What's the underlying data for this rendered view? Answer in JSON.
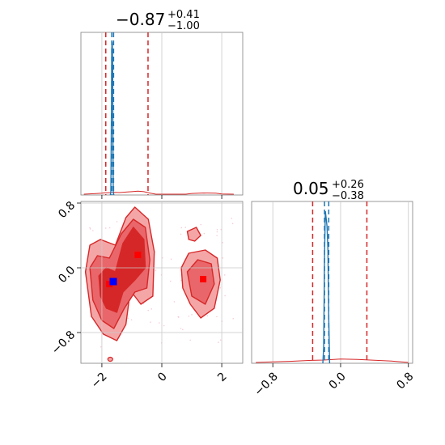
{
  "chart_data": {
    "type": "corner",
    "parameters": [
      {
        "title_value": "−0.87",
        "title_plus": "+0.41",
        "title_minus": "−1.00",
        "range": [
          -2.7,
          2.7
        ],
        "ticks": [
          -2,
          0,
          2
        ],
        "tick_labels": [
          "−2",
          "0",
          "2"
        ],
        "red_quantiles": [
          -1.87,
          -0.46
        ],
        "blue_quantiles": [
          -1.67,
          -1.61
        ],
        "red_hist": [
          [
            -2.6,
            0.0
          ],
          [
            -2.2,
            0.004
          ],
          [
            -2.0,
            0.007
          ],
          [
            -1.9,
            0.01
          ],
          [
            -1.8,
            0.01
          ],
          [
            -1.6,
            0.013
          ],
          [
            -1.4,
            0.012
          ],
          [
            -1.2,
            0.015
          ],
          [
            -1.0,
            0.018
          ],
          [
            -0.8,
            0.022
          ],
          [
            -0.6,
            0.018
          ],
          [
            -0.4,
            0.008
          ],
          [
            -0.2,
            0.0
          ],
          [
            0.8,
            0.0
          ],
          [
            1.0,
            0.005
          ],
          [
            1.4,
            0.009
          ],
          [
            1.8,
            0.007
          ],
          [
            2.0,
            0.002
          ],
          [
            2.4,
            0.0
          ]
        ],
        "blue_hist": [
          [
            -1.72,
            0.0
          ],
          [
            -1.7,
            0.02
          ],
          [
            -1.68,
            0.6
          ],
          [
            -1.67,
            0.95
          ],
          [
            -1.66,
            1.0
          ],
          [
            -1.65,
            0.97
          ],
          [
            -1.64,
            0.8
          ],
          [
            -1.63,
            0.3
          ],
          [
            -1.62,
            0.02
          ],
          [
            -1.6,
            0.0
          ]
        ]
      },
      {
        "title_value": "0.05",
        "title_plus": "+0.26",
        "title_minus": "−0.38",
        "range": [
          -1.05,
          0.85
        ],
        "ticks": [
          -0.8,
          0.0,
          0.8
        ],
        "tick_labels": [
          "−0.8",
          "0.0",
          "0.8"
        ],
        "red_quantiles": [
          -0.33,
          0.31
        ],
        "blue_quantiles": [
          -0.19,
          -0.14
        ],
        "red_hist": [
          [
            -1.0,
            0.0
          ],
          [
            -0.8,
            0.004
          ],
          [
            -0.6,
            0.008
          ],
          [
            -0.4,
            0.014
          ],
          [
            -0.2,
            0.018
          ],
          [
            0.0,
            0.025
          ],
          [
            0.2,
            0.022
          ],
          [
            0.4,
            0.016
          ],
          [
            0.6,
            0.01
          ],
          [
            0.8,
            0.0
          ]
        ],
        "blue_hist": [
          [
            -0.21,
            0.0
          ],
          [
            -0.2,
            0.1
          ],
          [
            -0.19,
            0.7
          ],
          [
            -0.18,
            1.0
          ],
          [
            -0.17,
            0.95
          ],
          [
            -0.16,
            0.9
          ],
          [
            -0.15,
            0.75
          ],
          [
            -0.14,
            0.3
          ],
          [
            -0.13,
            0.0
          ]
        ]
      }
    ],
    "joint": {
      "x_range": [
        -2.7,
        2.7
      ],
      "y_range": [
        -1.18,
        0.82
      ],
      "x_ticks": [
        -2,
        0,
        2
      ],
      "x_tick_labels": [
        "−2",
        "0",
        "2"
      ],
      "y_ticks": [
        0.8,
        0.0,
        -0.8
      ],
      "y_tick_labels": [
        "0.8",
        "0.0",
        "−0.8"
      ],
      "red_modes": [
        [
          -1.75,
          -0.2
        ],
        [
          -0.8,
          0.16
        ],
        [
          1.38,
          -0.14
        ]
      ],
      "blue_points": [
        [
          -1.62,
          -0.17
        ]
      ],
      "contour_regions": [
        {
          "level": "outer",
          "polygon": [
            [
              -2.55,
              -0.05
            ],
            [
              -2.4,
              0.28
            ],
            [
              -2.05,
              0.35
            ],
            [
              -1.55,
              0.28
            ],
            [
              -1.2,
              0.62
            ],
            [
              -0.9,
              0.75
            ],
            [
              -0.45,
              0.6
            ],
            [
              -0.25,
              0.2
            ],
            [
              -0.3,
              -0.35
            ],
            [
              -0.7,
              -0.45
            ],
            [
              -1.05,
              -0.28
            ],
            [
              -1.2,
              -0.7
            ],
            [
              -1.5,
              -0.9
            ],
            [
              -1.95,
              -0.82
            ],
            [
              -2.35,
              -0.6
            ]
          ]
        },
        {
          "level": "inner",
          "polygon": [
            [
              -2.4,
              0.0
            ],
            [
              -2.15,
              0.15
            ],
            [
              -1.75,
              0.12
            ],
            [
              -1.35,
              0.42
            ],
            [
              -0.95,
              0.6
            ],
            [
              -0.55,
              0.5
            ],
            [
              -0.4,
              0.1
            ],
            [
              -0.5,
              -0.25
            ],
            [
              -0.9,
              -0.3
            ],
            [
              -1.25,
              -0.5
            ],
            [
              -1.6,
              -0.75
            ],
            [
              -2.0,
              -0.65
            ],
            [
              -2.3,
              -0.4
            ]
          ]
        },
        {
          "level": "core",
          "polygon": [
            [
              -2.1,
              -0.1
            ],
            [
              -1.85,
              0.0
            ],
            [
              -1.55,
              -0.05
            ],
            [
              -1.3,
              0.3
            ],
            [
              -0.95,
              0.5
            ],
            [
              -0.6,
              0.35
            ],
            [
              -0.55,
              0.0
            ],
            [
              -0.9,
              -0.15
            ],
            [
              -1.3,
              -0.3
            ],
            [
              -1.5,
              -0.55
            ],
            [
              -1.85,
              -0.5
            ],
            [
              -2.05,
              -0.35
            ]
          ]
        },
        {
          "level": "outer",
          "polygon": [
            [
              0.65,
              0.0
            ],
            [
              0.9,
              0.18
            ],
            [
              1.45,
              0.22
            ],
            [
              1.85,
              0.12
            ],
            [
              1.95,
              -0.15
            ],
            [
              1.75,
              -0.5
            ],
            [
              1.3,
              -0.62
            ],
            [
              0.95,
              -0.45
            ],
            [
              0.7,
              -0.25
            ]
          ]
        },
        {
          "level": "inner",
          "polygon": [
            [
              0.85,
              -0.05
            ],
            [
              1.2,
              0.1
            ],
            [
              1.65,
              0.05
            ],
            [
              1.75,
              -0.2
            ],
            [
              1.45,
              -0.45
            ],
            [
              1.0,
              -0.35
            ]
          ]
        },
        {
          "level": "outer",
          "polygon": [
            [
              0.85,
              0.45
            ],
            [
              1.15,
              0.5
            ],
            [
              1.3,
              0.4
            ],
            [
              1.1,
              0.33
            ],
            [
              0.9,
              0.35
            ]
          ]
        }
      ]
    },
    "grid": true,
    "legend": "none"
  },
  "colors": {
    "red": "#d62728",
    "red_light": "#f4a6a7",
    "red_mid": "#e9676a",
    "red_dark": "#d62728",
    "blue": "#1f77b4",
    "blue_point": "#0000ff",
    "grid": "#c8c8c8",
    "axis": "#7f7f7f"
  }
}
